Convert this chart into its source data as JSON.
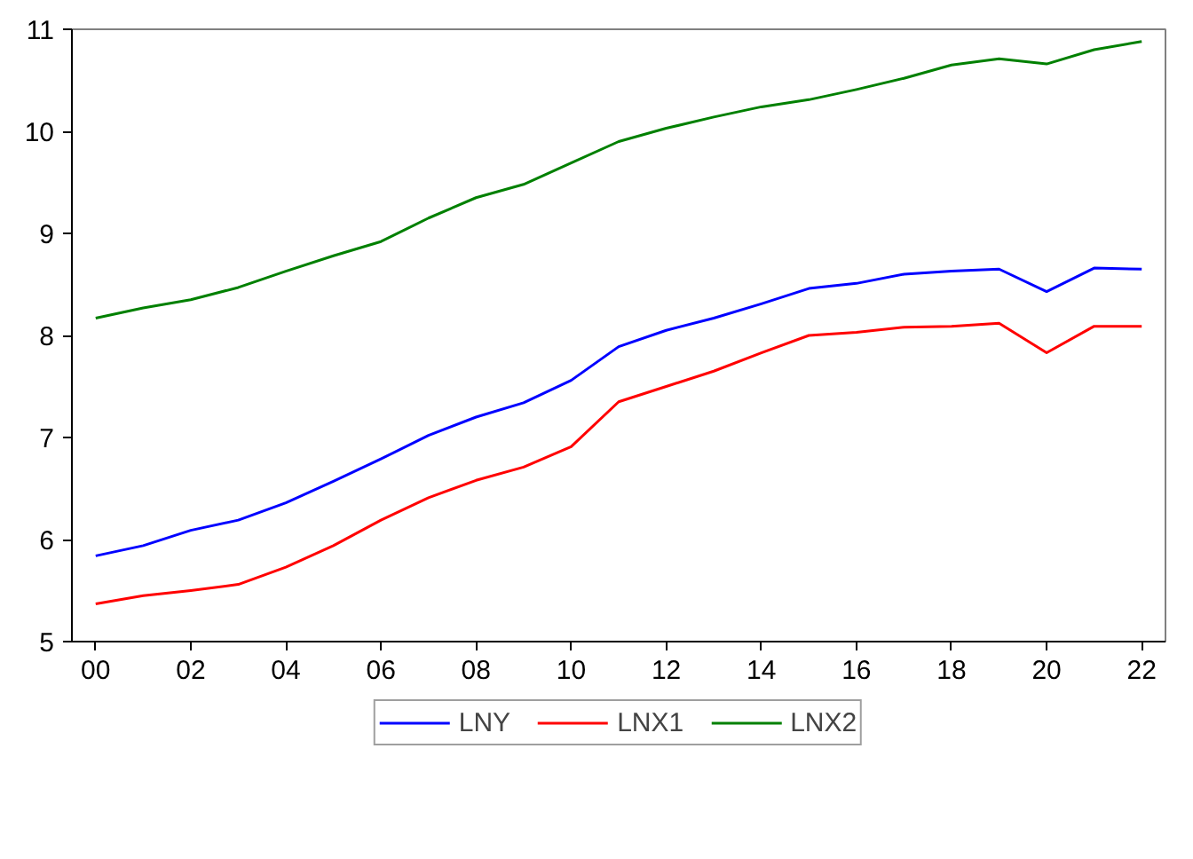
{
  "chart_data": {
    "type": "line",
    "x": [
      2000,
      2001,
      2002,
      2003,
      2004,
      2005,
      2006,
      2007,
      2008,
      2009,
      2010,
      2011,
      2012,
      2013,
      2014,
      2015,
      2016,
      2017,
      2018,
      2019,
      2020,
      2021,
      2022
    ],
    "series": [
      {
        "name": "LNY",
        "color": "#0000ff",
        "values": [
          5.84,
          5.94,
          6.09,
          6.19,
          6.36,
          6.57,
          6.79,
          7.02,
          7.2,
          7.34,
          7.56,
          7.89,
          8.05,
          8.17,
          8.31,
          8.46,
          8.51,
          8.6,
          8.63,
          8.65,
          8.43,
          8.66,
          8.65
        ]
      },
      {
        "name": "LNX1",
        "color": "#ff0000",
        "values": [
          5.37,
          5.45,
          5.5,
          5.56,
          5.73,
          5.94,
          6.19,
          6.41,
          6.58,
          6.71,
          6.91,
          7.35,
          7.5,
          7.65,
          7.83,
          8.0,
          8.03,
          8.08,
          8.09,
          8.12,
          7.83,
          8.09,
          8.09
        ]
      },
      {
        "name": "LNX2",
        "color": "#008000",
        "values": [
          8.17,
          8.27,
          8.35,
          8.47,
          8.63,
          8.78,
          8.92,
          9.15,
          9.35,
          9.48,
          9.69,
          9.9,
          10.03,
          10.14,
          10.24,
          10.31,
          10.41,
          10.52,
          10.65,
          10.71,
          10.66,
          10.8,
          10.88
        ]
      }
    ],
    "xlim": [
      1999.5,
      2022.5
    ],
    "xticks": [
      {
        "value": 2000,
        "label": "00"
      },
      {
        "value": 2002,
        "label": "02"
      },
      {
        "value": 2004,
        "label": "04"
      },
      {
        "value": 2006,
        "label": "06"
      },
      {
        "value": 2008,
        "label": "08"
      },
      {
        "value": 2010,
        "label": "10"
      },
      {
        "value": 2012,
        "label": "12"
      },
      {
        "value": 2014,
        "label": "14"
      },
      {
        "value": 2016,
        "label": "16"
      },
      {
        "value": 2018,
        "label": "18"
      },
      {
        "value": 2020,
        "label": "20"
      },
      {
        "value": 2022,
        "label": "22"
      }
    ],
    "ylim": [
      5,
      11
    ],
    "yticks": [
      5,
      6,
      7,
      8,
      9,
      10,
      11
    ],
    "grid": false,
    "legend": "bottom",
    "marker": "none",
    "line_style": "solid"
  }
}
